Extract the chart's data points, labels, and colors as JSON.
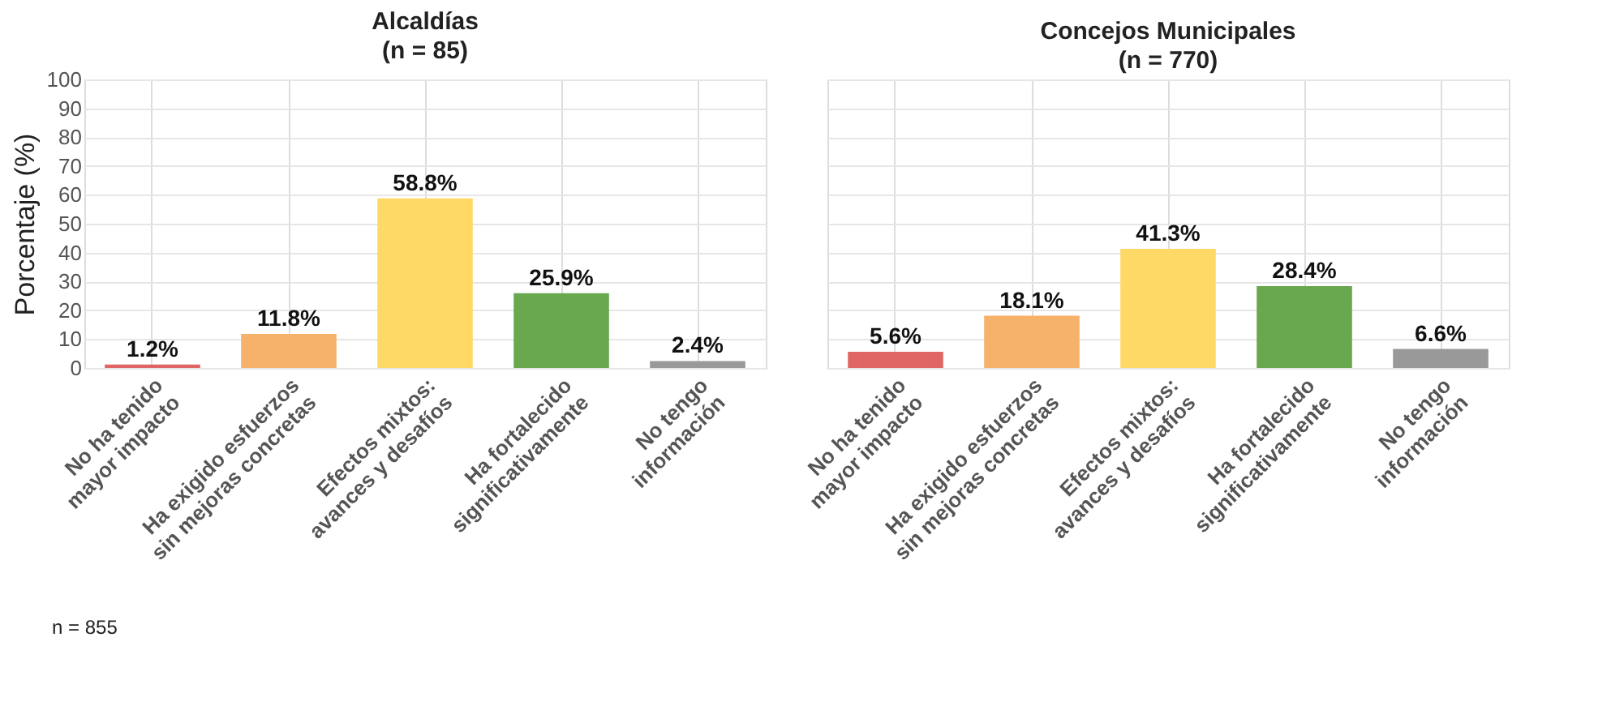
{
  "chart_data": [
    {
      "type": "bar",
      "title": "Alcaldías",
      "subtitle": "(n = 85)",
      "ylabel": "Porcentaje (%)",
      "categories": [
        "No ha tenido\nmayor impacto",
        "Ha exigido esfuerzos\nsin mejoras concretas",
        "Efectos mixtos:\navances y desafíos",
        "Ha fortalecido\nsignificativamente",
        "No tengo\ninformación"
      ],
      "values": [
        1.2,
        11.8,
        58.8,
        25.9,
        2.4
      ],
      "colors": [
        "#e06666",
        "#f6b26b",
        "#ffd966",
        "#6aa84f",
        "#999999"
      ],
      "value_labels": [
        "1.2%",
        "11.8%",
        "58.8%",
        "25.9%",
        "2.4%"
      ],
      "ylim": [
        0,
        100
      ],
      "yticks": [
        0,
        10,
        20,
        30,
        40,
        50,
        60,
        70,
        80,
        90,
        100
      ],
      "grid": true,
      "annotations": [
        "n = 855"
      ]
    },
    {
      "type": "bar",
      "title": "Concejos Municipales",
      "subtitle": "(n = 770)",
      "categories": [
        "No ha tenido\nmayor impacto",
        "Ha exigido esfuerzos\nsin mejoras concretas",
        "Efectos mixtos:\navances y desafíos",
        "Ha fortalecido\nsignificativamente",
        "No tengo\ninformación"
      ],
      "values": [
        5.6,
        18.1,
        41.3,
        28.4,
        6.6
      ],
      "colors": [
        "#e06666",
        "#f6b26b",
        "#ffd966",
        "#6aa84f",
        "#999999"
      ],
      "value_labels": [
        "5.6%",
        "18.1%",
        "41.3%",
        "28.4%",
        "6.6%"
      ],
      "ylim": [
        0,
        100
      ],
      "yticks": [
        0,
        10,
        20,
        30,
        40,
        50,
        60,
        70,
        80,
        90,
        100
      ],
      "grid": true,
      "tick_labels": "x"
    }
  ]
}
